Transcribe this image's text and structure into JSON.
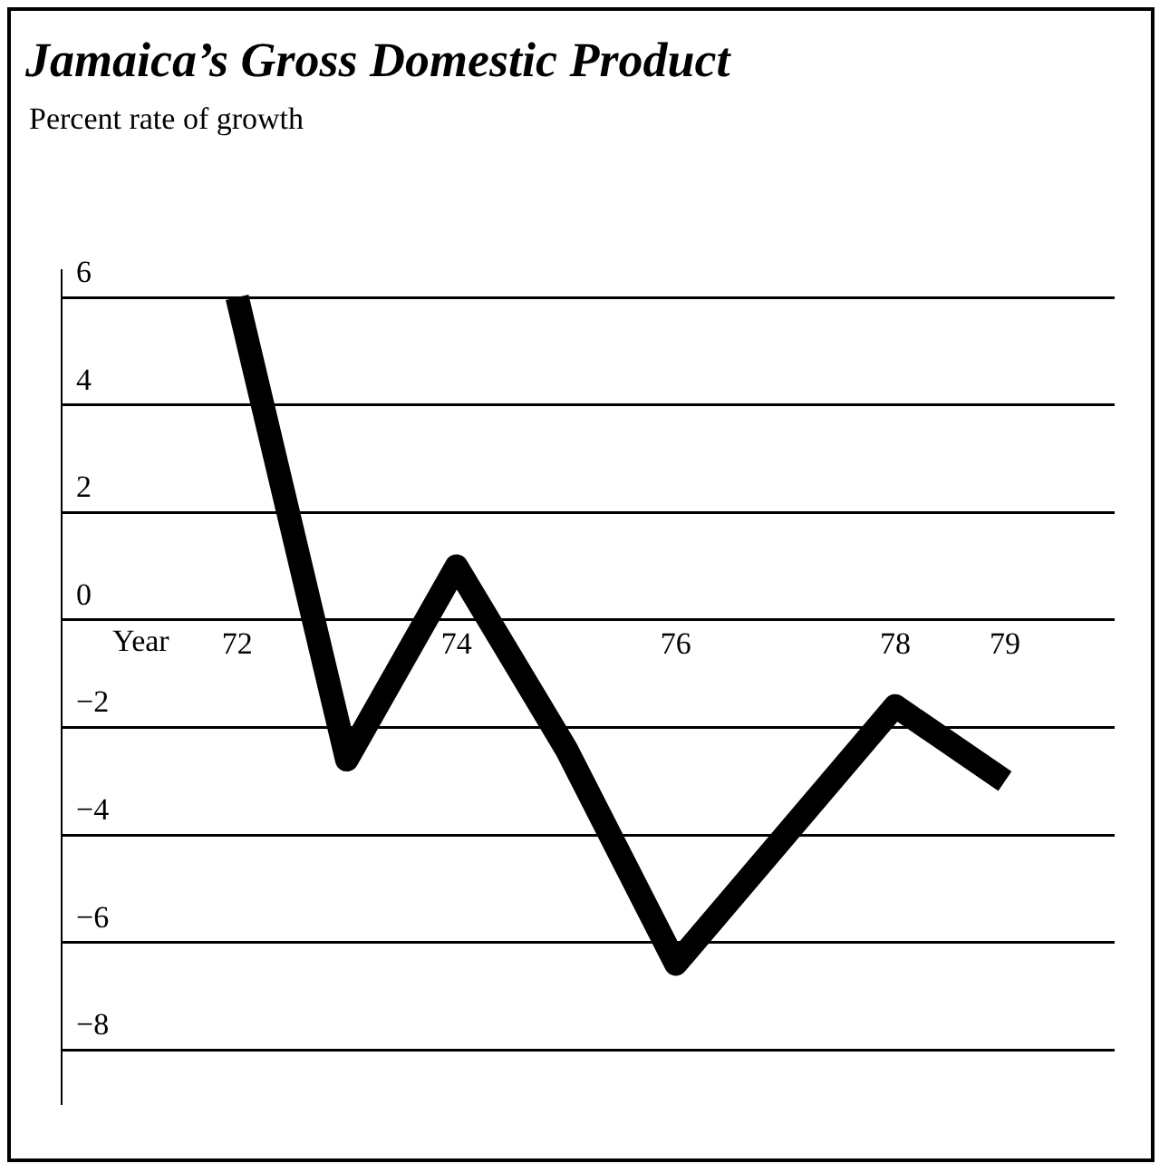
{
  "chart_data": {
    "type": "line",
    "title": "Jamaica’s Gross Domestic Product",
    "subtitle": "Percent rate of growth",
    "xlabel": "Year",
    "x": [
      72,
      73,
      74,
      75,
      76,
      78,
      79
    ],
    "series": [
      {
        "color": "#000000",
        "values": [
          6,
          -2.6,
          1,
          -2.4,
          -6.4,
          -1.6,
          -3.0
        ]
      }
    ],
    "xlim": [
      70.4,
      80
    ],
    "xticks": [
      72,
      74,
      76,
      78,
      79
    ],
    "ylim": [
      -9,
      6.5
    ],
    "yticks": [
      6,
      4,
      2,
      0,
      {
        "value": -2,
        "label": "−2"
      },
      {
        "value": -4,
        "label": "−4"
      },
      {
        "value": -6,
        "label": "−6"
      },
      {
        "value": -8,
        "label": "−8"
      }
    ],
    "grid": "y",
    "legend": false,
    "marker": "none",
    "line_style": "solid"
  }
}
